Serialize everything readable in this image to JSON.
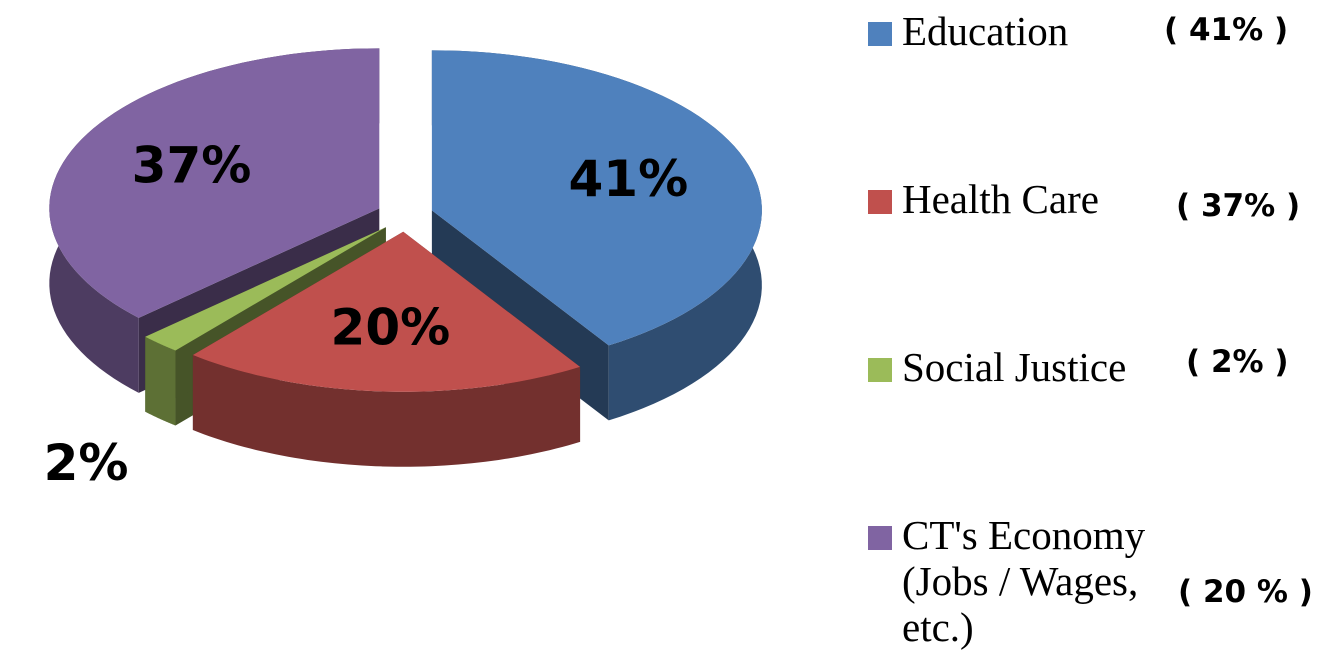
{
  "chart_data": {
    "type": "pie3d",
    "categories": [
      "Education",
      "Health Care",
      "Social Justice",
      "CT's Economy (Jobs / Wages, etc.)"
    ],
    "values": [
      41,
      20,
      2,
      37
    ],
    "value_labels": [
      "41%",
      "20%",
      "2%",
      "37%"
    ],
    "colors": [
      "#4f81bd",
      "#c0504d",
      "#9bbb59",
      "#8064a2"
    ],
    "legend_notes": [
      "( 41% )",
      "( 37% )",
      "( 2% )",
      "( 20 % )"
    ],
    "legend": "right"
  }
}
